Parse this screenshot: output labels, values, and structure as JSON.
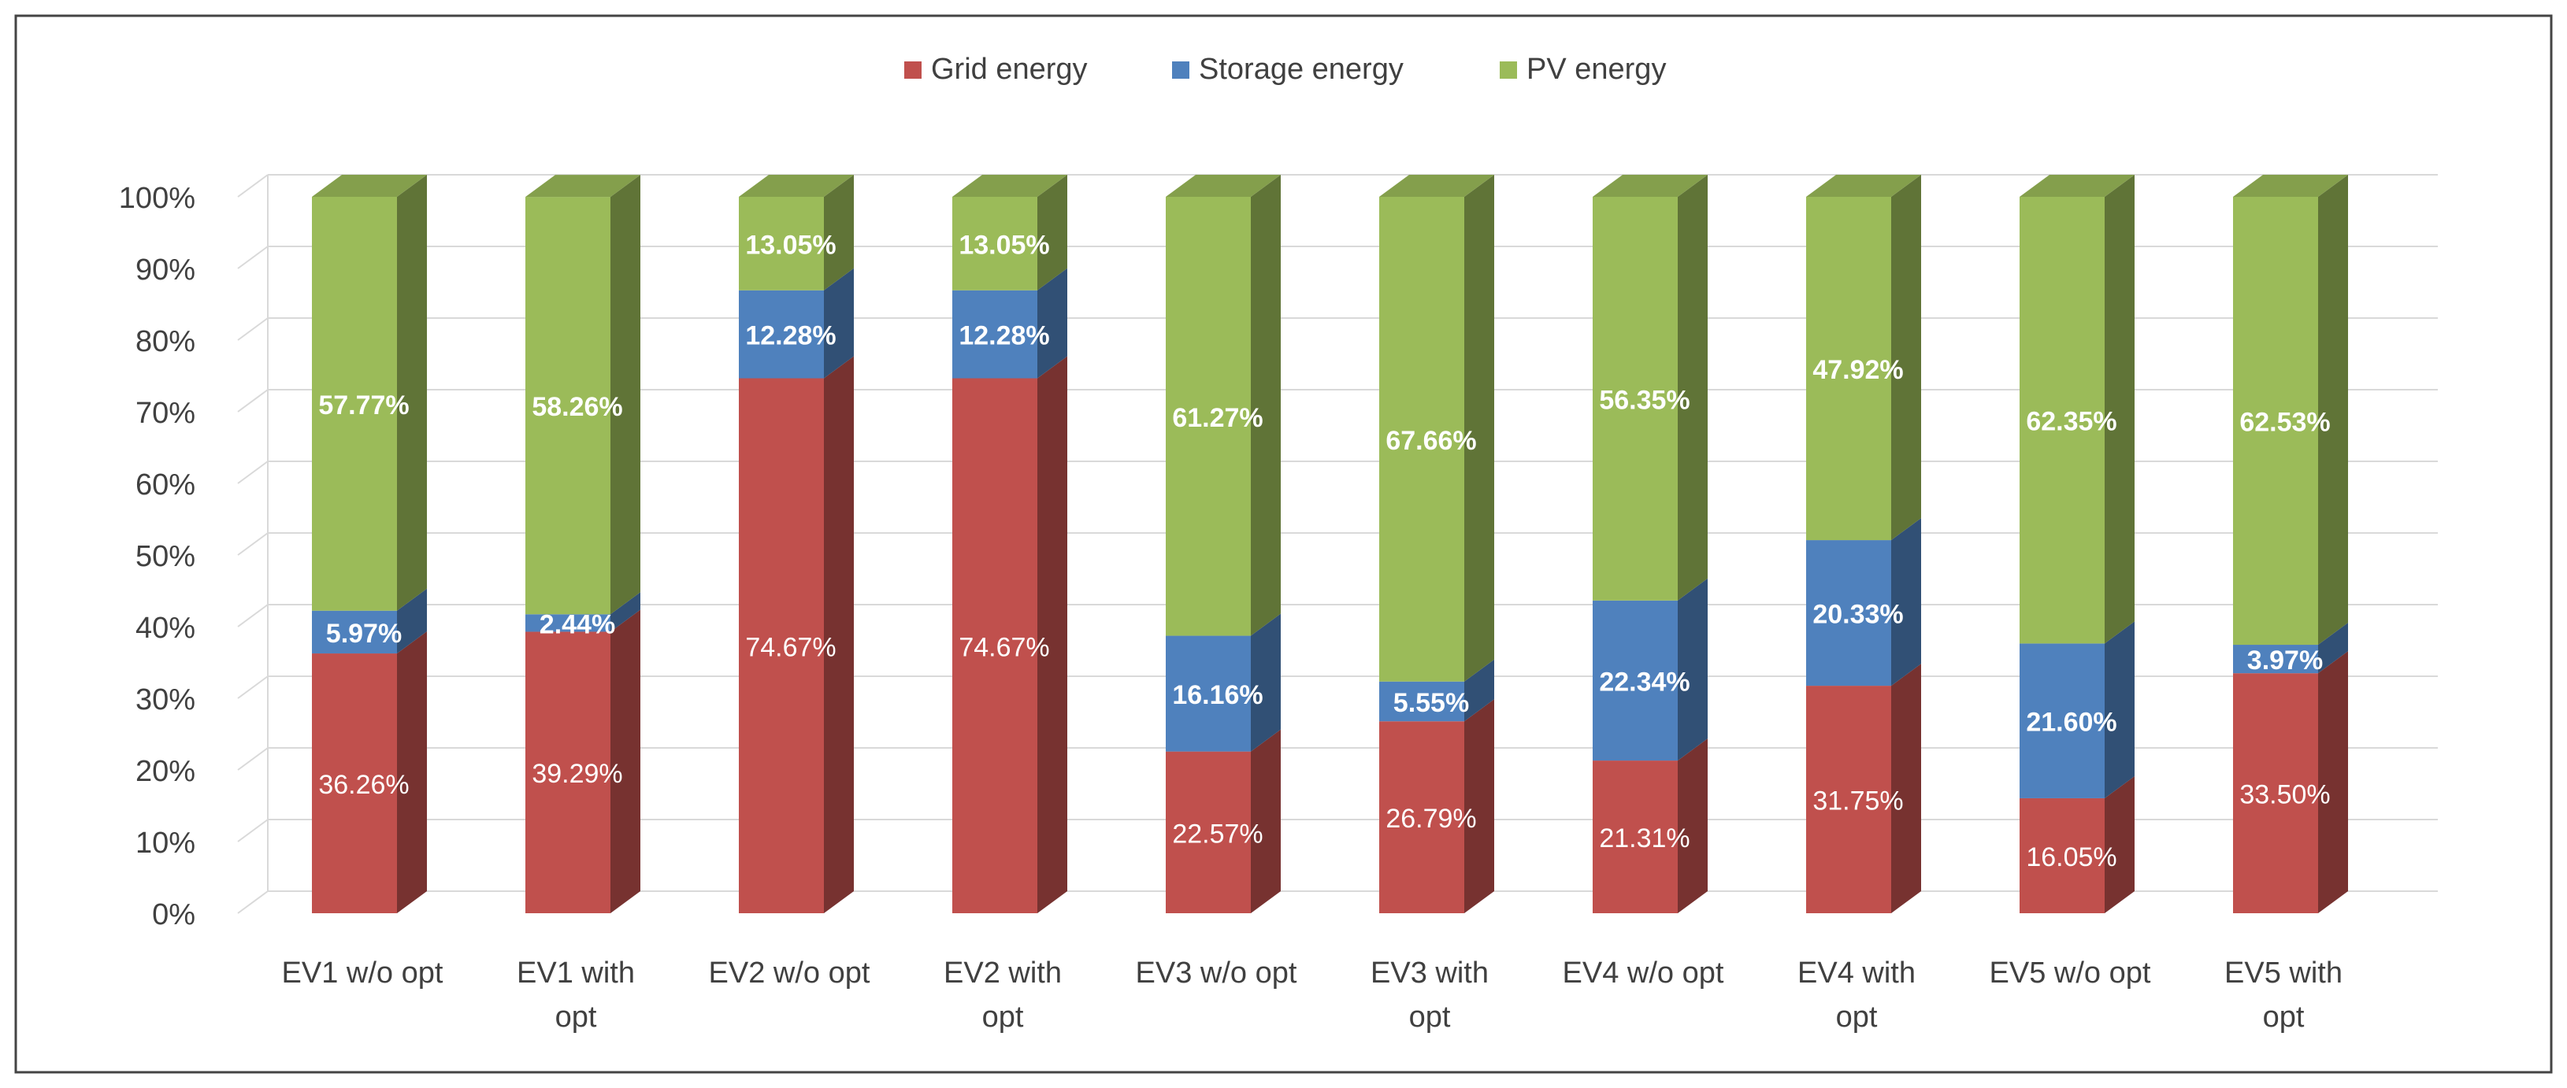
{
  "chart_data": {
    "type": "bar",
    "stacked": true,
    "percent_stacked": true,
    "style": "3d-column",
    "categories": [
      "EV1 w/o opt",
      "EV1 with opt",
      "EV2 w/o opt",
      "EV2 with opt",
      "EV3 w/o opt",
      "EV3 with opt",
      "EV4 w/o opt",
      "EV4 with opt",
      "EV5 w/o opt",
      "EV5 with opt"
    ],
    "series": [
      {
        "name": "Grid energy",
        "color": "#C0504D",
        "values": [
          36.26,
          39.29,
          74.67,
          74.67,
          22.57,
          26.79,
          21.31,
          31.75,
          16.05,
          33.5
        ],
        "labels": [
          "36.26%",
          "39.29%",
          "74.67%",
          "74.67%",
          "22.57%",
          "26.79%",
          "21.31%",
          "31.75%",
          "16.05%",
          "33.50%"
        ]
      },
      {
        "name": "Storage energy",
        "color": "#4F81BD",
        "values": [
          5.97,
          2.44,
          12.28,
          12.28,
          16.16,
          5.55,
          22.34,
          20.33,
          21.6,
          3.97
        ],
        "labels": [
          "5.97%",
          "2.44%",
          "12.28%",
          "12.28%",
          "16.16%",
          "5.55%",
          "22.34%",
          "20.33%",
          "21.60%",
          "3.97%"
        ]
      },
      {
        "name": "PV energy",
        "color": "#9BBB59",
        "values": [
          57.77,
          58.26,
          13.05,
          13.05,
          61.27,
          67.66,
          56.35,
          47.92,
          62.35,
          62.53
        ],
        "labels": [
          "57.77%",
          "58.26%",
          "13.05%",
          "13.05%",
          "61.27%",
          "67.66%",
          "56.35%",
          "47.92%",
          "62.35%",
          "62.53%"
        ]
      }
    ],
    "y_ticks": [
      "0%",
      "10%",
      "20%",
      "30%",
      "40%",
      "50%",
      "60%",
      "70%",
      "80%",
      "90%",
      "100%"
    ],
    "ylim": [
      0,
      100
    ],
    "legend_position": "top-center",
    "grid": true
  }
}
